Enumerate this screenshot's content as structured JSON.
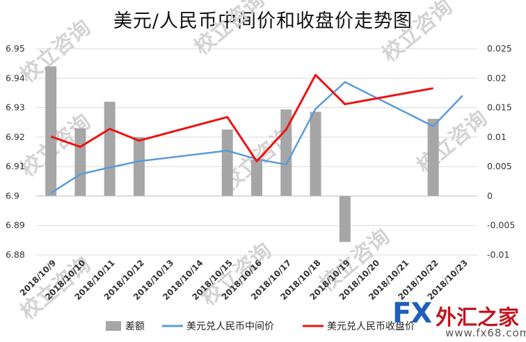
{
  "chart_data": {
    "type": "bar",
    "title": "美元/人民币中间价和收盘价走势图",
    "categories": [
      "2018/10/9",
      "2018/10/10",
      "2018/10/11",
      "2018/10/12",
      "2018/10/13",
      "2018/10/14",
      "2018/10/15",
      "2018/10/16",
      "2018/10/17",
      "2018/10/18",
      "2018/10/19",
      "2018/10/20",
      "2018/10/21",
      "2018/10/22",
      "2018/10/23"
    ],
    "y_left": {
      "ylim": [
        6.88,
        6.95
      ],
      "ticks": [
        "6.88",
        "6.89",
        "6.9",
        "6.91",
        "6.92",
        "6.93",
        "6.94",
        "6.95"
      ]
    },
    "y_right": {
      "ylim": [
        -0.01,
        0.025
      ],
      "ticks": [
        "-0.01",
        "-0.005",
        "0",
        "0.005",
        "0.01",
        "0.015",
        "0.02",
        "0.025"
      ]
    },
    "series": [
      {
        "name": "差额",
        "type": "bar",
        "axis": "right",
        "color": "#a6a6a6",
        "values": [
          0.022,
          0.0115,
          0.016,
          0.01,
          null,
          null,
          0.0113,
          0.0062,
          0.0147,
          0.0143,
          -0.0078,
          null,
          null,
          0.0131,
          null
        ]
      },
      {
        "name": "美元兑人民币中间价",
        "type": "line",
        "axis": "left",
        "color": "#5b9bd5",
        "values": [
          6.901,
          6.9074,
          6.9097,
          6.9118,
          null,
          null,
          6.9154,
          6.9125,
          6.9107,
          6.9296,
          6.9387,
          null,
          null,
          6.9237,
          6.9341
        ]
      },
      {
        "name": "美元兑人民币收盘价",
        "type": "line",
        "axis": "left",
        "color": "#ee1111",
        "values": [
          6.9202,
          6.9167,
          6.9228,
          6.9188,
          null,
          null,
          6.9268,
          6.9118,
          6.9226,
          6.9411,
          6.9312,
          null,
          null,
          6.9366,
          null
        ]
      }
    ],
    "legend": {
      "position": "bottom",
      "labels": [
        "差额",
        "美元兑人民币中间价",
        "美元兑人民币收盘价"
      ]
    },
    "grid": true
  },
  "watermark": {
    "text": "校立咨询"
  },
  "brand": {
    "fx": "FX",
    "cn": "外汇之家",
    "url": "www.fx68.com"
  }
}
